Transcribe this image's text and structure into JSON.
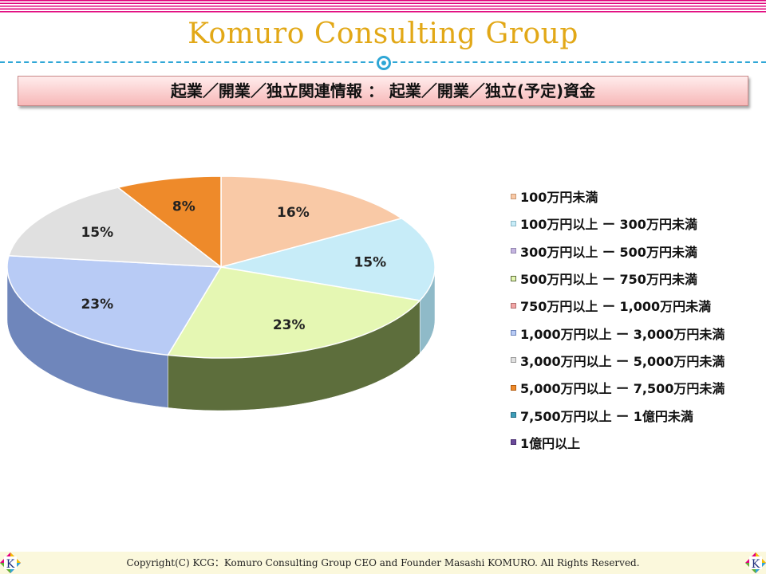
{
  "header": {
    "title": "Komuro Consulting Group"
  },
  "banner": {
    "text": "起業／開業／独立関連情報 ： 起業／開業／独立(予定)資金"
  },
  "chart_data": {
    "type": "pie",
    "categories": [
      "100万円未満",
      "100万円以上 ー 300万円未満",
      "300万円以上 ー 500万円未満",
      "500万円以上 ー 750万円未満",
      "750万円以上 ー 1,000万円未満",
      "1,000万円以上 ー 3,000万円未満",
      "3,000万円以上 ー 5,000万円未満",
      "5,000万円以上 ー 7,500万円未満",
      "7,500万円以上 ー 1億円未満",
      "1億円以上"
    ],
    "values": [
      16,
      15,
      0,
      23,
      0,
      23,
      15,
      8,
      0,
      0
    ],
    "data_labels": [
      "16%",
      "15%",
      "",
      "23%",
      "",
      "23%",
      "15%",
      "8%",
      "",
      ""
    ],
    "colors": [
      "#f9c9a6",
      "#c7ecf8",
      "#c4b4e0",
      "#e5f7b3",
      "#f2a6a6",
      "#b8cbf5",
      "#e0e0e0",
      "#ee8a2a",
      "#3d9db8",
      "#6a4a9a"
    ],
    "side_colors": [
      "#c99a76",
      "#8fbac8",
      "#9486b0",
      "#5d6e3c",
      "#b27070",
      "#6f86bb",
      "#999999",
      "#b55e10",
      "#2a7088",
      "#4a2e70"
    ],
    "legend_position": "right",
    "style": "3d"
  },
  "footer": {
    "copyright": "Copyright(C) KCG：Komuro Consulting Group CEO and Founder Masashi KOMURO. All Rights Reserved."
  },
  "logo": {
    "letter": "K"
  }
}
